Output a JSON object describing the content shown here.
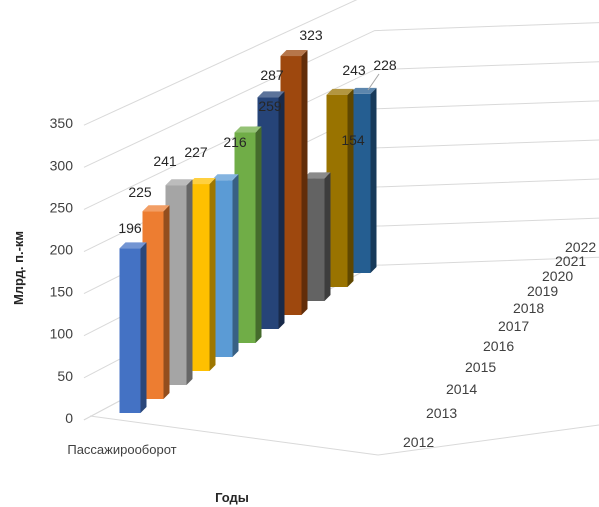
{
  "chart_data": {
    "type": "bar",
    "style": "3d-column",
    "ylabel": "Млрд. п.-км",
    "xlabel": "Годы",
    "category": "Пассажирооборот",
    "ylim": [
      0,
      350
    ],
    "yticks": [
      0,
      50,
      100,
      150,
      200,
      250,
      300,
      350
    ],
    "grid": true,
    "series": [
      {
        "name": "2012",
        "value": 196,
        "label": "196",
        "color": "#4472c4"
      },
      {
        "name": "2013",
        "value": 225,
        "label": "225",
        "color": "#ed7d31"
      },
      {
        "name": "2014",
        "value": 241,
        "label": "241",
        "color": "#a5a5a5"
      },
      {
        "name": "2015",
        "value": 227,
        "label": "227",
        "color": "#ffc000"
      },
      {
        "name": "2016",
        "value": 216,
        "label": "216",
        "color": "#5b9bd5"
      },
      {
        "name": "2017",
        "value": 259,
        "label": "259",
        "color": "#70ad47"
      },
      {
        "name": "2018",
        "value": 287,
        "label": "287",
        "color": "#264478"
      },
      {
        "name": "2019",
        "value": 323,
        "label": "323",
        "color": "#9e480e"
      },
      {
        "name": "2020",
        "value": 154,
        "label": "154",
        "color": "#636363"
      },
      {
        "name": "2021",
        "value": 243,
        "label": "243",
        "color": "#997300"
      },
      {
        "name": "2022",
        "value": 228,
        "label": "228",
        "color": "#255e91"
      }
    ]
  }
}
